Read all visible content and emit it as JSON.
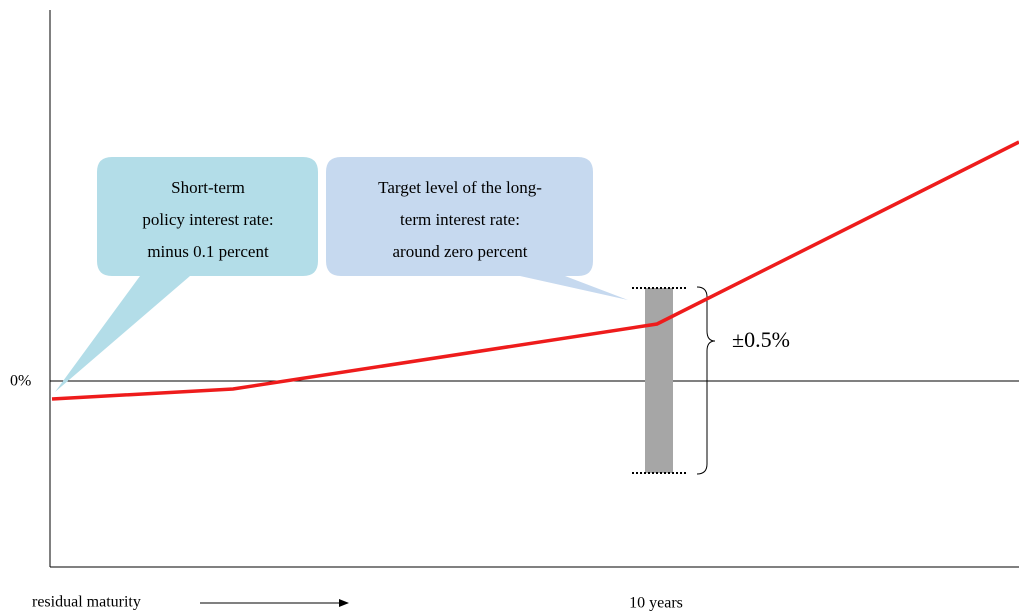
{
  "y_axis_label": "0%",
  "x_axis_label": "residual maturity",
  "x_marker_label": "10 years",
  "band_label": "±0.5%",
  "callouts": [
    {
      "lines": [
        "Short-term",
        "policy interest rate:",
        "minus  0.1 percent"
      ]
    },
    {
      "lines": [
        "Target level of the long-",
        "term interest rate:",
        "around zero percent"
      ]
    }
  ]
}
